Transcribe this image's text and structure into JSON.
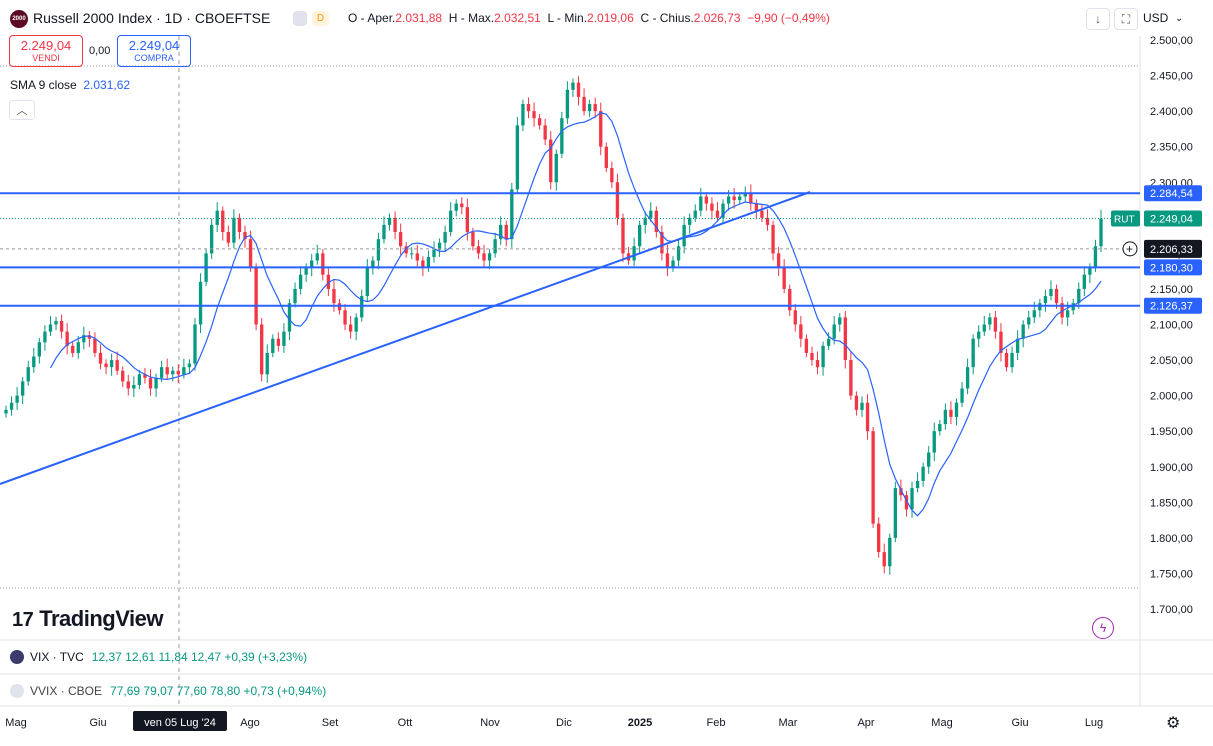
{
  "header": {
    "logo_text": "2000",
    "title": "Russell 2000 Index · 1D · CBOEFTSE",
    "ohlc": [
      {
        "label": "O - Aper.",
        "value": "2.031,88"
      },
      {
        "label": "H - Max.",
        "value": "2.032,51"
      },
      {
        "label": "L - Min.",
        "value": "2.019,06"
      },
      {
        "label": "C - Chius.",
        "value": "2.026,73"
      }
    ],
    "change": "−9,90 (−0,49%)",
    "pill_d": "D",
    "currency": "USD",
    "down_icon": "↓",
    "fullscreen_icon": "⛶"
  },
  "trade": {
    "sell_value": "2.249,04",
    "sell_label": "VENDI",
    "spread": "0,00",
    "buy_value": "2.249,04",
    "buy_label": "COMPRA"
  },
  "sma": {
    "label": "SMA 9 close",
    "value": "2.031,62"
  },
  "indicators": [
    {
      "name": "VIX · TVC",
      "values": "12,37  12,61  11,84  12,47  +0,39 (+3,23%)",
      "flag_color": "#3c3b6e"
    },
    {
      "name": "VVIX · CBOE",
      "values": "77,69  79,07  77,60  78,80  +0,73 (+0,94%)",
      "flag_color": "#e0e3eb"
    }
  ],
  "brand": {
    "mark": "17",
    "name": "TradingView"
  },
  "colors": {
    "up": "#089981",
    "down": "#f23645",
    "sma": "#2962ff",
    "lines": "#2962ff"
  },
  "chart_data": {
    "type": "candlestick",
    "symbol": "RUT",
    "y_axis": {
      "range": [
        1685,
        2510
      ],
      "ticks": [
        1700,
        1750,
        1800,
        1850,
        1900,
        1950,
        2000,
        2050,
        2100,
        2150,
        2200,
        2250,
        2300,
        2350,
        2400,
        2450,
        2500
      ],
      "tick_labels": [
        "1.700,00",
        "1.750,00",
        "1.800,00",
        "1.850,00",
        "1.900,00",
        "1.950,00",
        "2.000,00",
        "2.050,00",
        "2.100,00",
        "2.150,00",
        "2.200,00",
        "2.250,00",
        "2.300,00",
        "2.350,00",
        "2.400,00",
        "2.450,00",
        "2.500,00"
      ]
    },
    "x_axis": {
      "labels": [
        "Mag",
        "Giu",
        "Ago",
        "Set",
        "Ott",
        "Nov",
        "Dic",
        "2025",
        "Feb",
        "Mar",
        "Apr",
        "Mag",
        "Giu",
        "Lug"
      ],
      "crosshair_label": "ven 05 Lug '24"
    },
    "horizontal_lines": [
      {
        "value": 2284.54,
        "label": "2.284,54"
      },
      {
        "value": 2180.3,
        "label": "2.180,30"
      },
      {
        "value": 2126.37,
        "label": "2.126,37"
      }
    ],
    "price_labels": [
      {
        "name": "RUT",
        "value": 2249.04,
        "label": "2.249,04"
      },
      {
        "value": 2206.33,
        "label": "2.206,33"
      }
    ],
    "trendline": {
      "from": {
        "date": "2024-04-15",
        "value": 1880
      },
      "to": {
        "date": "2025-03-12",
        "value": 2290
      }
    },
    "closes": [
      1980,
      1990,
      2000,
      2020,
      2040,
      2055,
      2075,
      2090,
      2100,
      2105,
      2090,
      2070,
      2060,
      2075,
      2085,
      2080,
      2060,
      2045,
      2040,
      2050,
      2035,
      2020,
      2010,
      2015,
      2030,
      2025,
      2010,
      2025,
      2040,
      2030,
      2035,
      2030,
      2040,
      2045,
      2100,
      2160,
      2200,
      2240,
      2260,
      2230,
      2215,
      2250,
      2230,
      2220,
      2180,
      2100,
      2030,
      2060,
      2080,
      2070,
      2090,
      2130,
      2150,
      2170,
      2180,
      2190,
      2200,
      2170,
      2150,
      2130,
      2120,
      2100,
      2090,
      2110,
      2140,
      2180,
      2190,
      2220,
      2240,
      2250,
      2230,
      2210,
      2200,
      2200,
      2190,
      2180,
      2195,
      2205,
      2215,
      2230,
      2260,
      2270,
      2265,
      2230,
      2210,
      2200,
      2190,
      2200,
      2220,
      2240,
      2220,
      2290,
      2380,
      2410,
      2400,
      2390,
      2380,
      2360,
      2300,
      2340,
      2390,
      2430,
      2440,
      2420,
      2400,
      2410,
      2400,
      2350,
      2320,
      2300,
      2250,
      2200,
      2190,
      2210,
      2240,
      2250,
      2260,
      2230,
      2200,
      2180,
      2190,
      2210,
      2240,
      2250,
      2260,
      2280,
      2270,
      2260,
      2250,
      2270,
      2280,
      2275,
      2280,
      2285,
      2270,
      2260,
      2250,
      2240,
      2200,
      2180,
      2150,
      2120,
      2100,
      2080,
      2060,
      2050,
      2040,
      2070,
      2080,
      2100,
      2110,
      2050,
      2000,
      1980,
      1990,
      1950,
      1820,
      1780,
      1760,
      1800,
      1870,
      1860,
      1840,
      1870,
      1880,
      1900,
      1920,
      1950,
      1960,
      1980,
      1970,
      1990,
      2010,
      2040,
      2080,
      2090,
      2100,
      2110,
      2090,
      2060,
      2040,
      2060,
      2080,
      2100,
      2110,
      2120,
      2130,
      2140,
      2150,
      2130,
      2110,
      2120,
      2130,
      2150,
      2170,
      2180,
      2210,
      2249
    ]
  }
}
